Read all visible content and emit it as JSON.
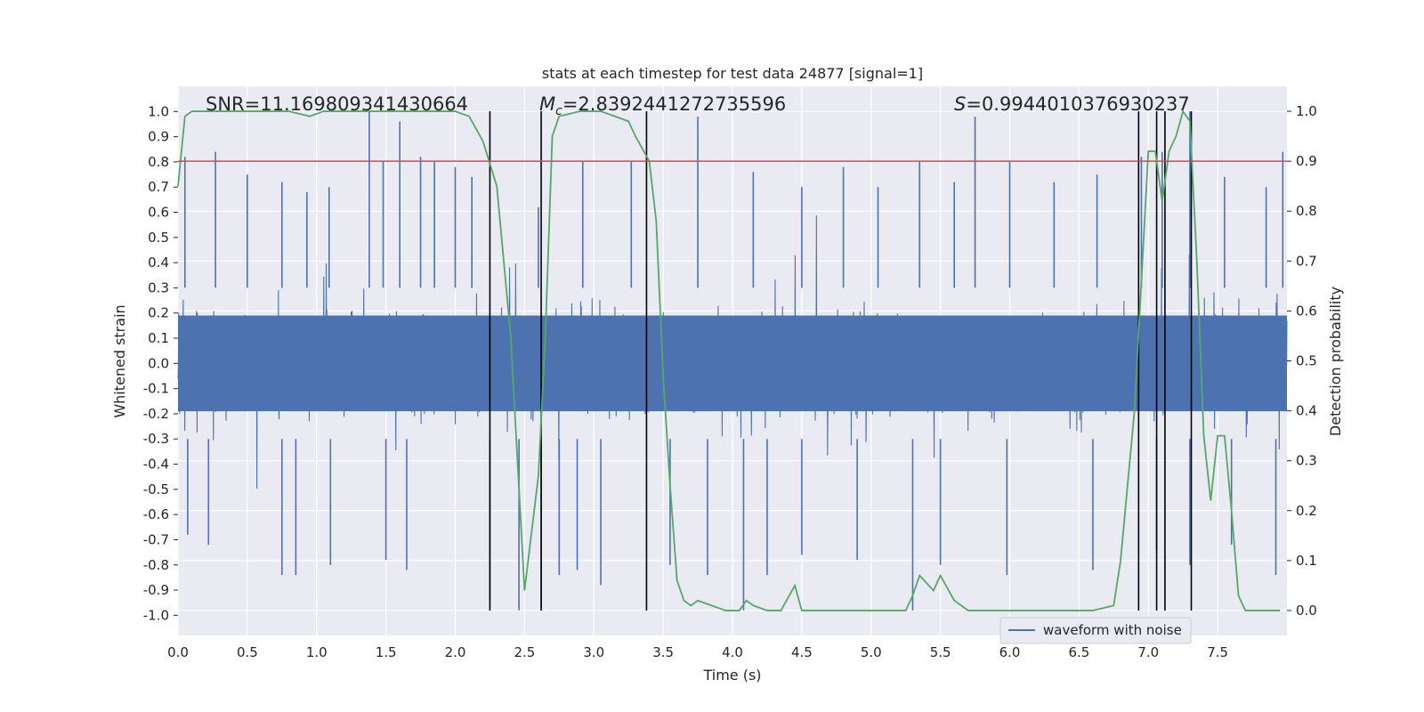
{
  "chart_data": {
    "type": "line",
    "title": "stats at each timestep for test data 24877 [signal=1]",
    "xlabel": "Time (s)",
    "ylabel": "Whitened strain",
    "y2label": "Detection probability",
    "xlim": [
      0,
      8
    ],
    "ylim": [
      -1.08,
      1.1
    ],
    "y2lim": [
      -0.05,
      1.05
    ],
    "xticks": [
      0.0,
      0.5,
      1.0,
      1.5,
      2.0,
      2.5,
      3.0,
      3.5,
      4.0,
      4.5,
      5.0,
      5.5,
      6.0,
      6.5,
      7.0,
      7.5
    ],
    "yticks": [
      1.0,
      0.9,
      0.8,
      0.7,
      0.6,
      0.5,
      0.4,
      0.3,
      0.2,
      0.1,
      0.0,
      -0.1,
      -0.2,
      -0.3,
      -0.4,
      -0.5,
      -0.6,
      -0.7,
      -0.8,
      -0.9,
      -1.0
    ],
    "y2ticks": [
      1.0,
      0.9,
      0.8,
      0.7,
      0.6,
      0.5,
      0.4,
      0.3,
      0.2,
      0.1,
      0.0
    ],
    "grid": true,
    "legend": {
      "placement": "lower-right",
      "entries": [
        "waveform with noise"
      ]
    },
    "annotations": {
      "snr_text": "SNR=11.169809341430664",
      "mc_symbol": "M",
      "mc_subscript": "c",
      "mc_value": "=2.8392441272735596",
      "s_symbol": "S",
      "s_value": "=0.9944010376930237"
    },
    "threshold": {
      "axis": "y2",
      "value": 0.9,
      "color": "#c44e52"
    },
    "vertical_markers_x": [
      2.25,
      2.62,
      3.38,
      6.93,
      7.06,
      7.12,
      7.31
    ],
    "series": [
      {
        "name": "waveform with noise",
        "axis": "y",
        "color": "#4c72b0",
        "description_note": "dense noisy strain, core amplitude about 0.2, spikes up to 1.0 and down to -0.98",
        "spikes_up": [
          [
            0.05,
            0.82
          ],
          [
            0.27,
            0.84
          ],
          [
            0.5,
            0.75
          ],
          [
            0.75,
            0.72
          ],
          [
            0.93,
            0.68
          ],
          [
            1.09,
            0.7
          ],
          [
            1.38,
            1.0
          ],
          [
            1.48,
            0.8
          ],
          [
            1.6,
            0.96
          ],
          [
            1.75,
            0.82
          ],
          [
            1.85,
            0.8
          ],
          [
            2.0,
            0.78
          ],
          [
            2.12,
            0.74
          ],
          [
            2.6,
            0.62
          ],
          [
            2.92,
            0.8
          ],
          [
            3.27,
            0.8
          ],
          [
            3.75,
            0.98
          ],
          [
            4.15,
            0.76
          ],
          [
            4.5,
            0.7
          ],
          [
            4.8,
            0.78
          ],
          [
            5.05,
            0.7
          ],
          [
            5.35,
            0.8
          ],
          [
            5.6,
            0.72
          ],
          [
            5.75,
            0.98
          ],
          [
            6.0,
            0.8
          ],
          [
            6.32,
            0.72
          ],
          [
            6.63,
            0.75
          ],
          [
            6.95,
            0.82
          ],
          [
            7.1,
            0.84
          ],
          [
            7.3,
            1.0
          ],
          [
            7.55,
            0.74
          ],
          [
            7.85,
            0.7
          ],
          [
            7.97,
            0.84
          ]
        ],
        "spikes_down": [
          [
            0.07,
            -0.68
          ],
          [
            0.22,
            -0.72
          ],
          [
            0.75,
            -0.84
          ],
          [
            0.85,
            -0.84
          ],
          [
            1.1,
            -0.8
          ],
          [
            1.5,
            -0.78
          ],
          [
            1.65,
            -0.82
          ],
          [
            2.25,
            -0.94
          ],
          [
            2.46,
            -0.98
          ],
          [
            2.62,
            -0.97
          ],
          [
            2.75,
            -0.84
          ],
          [
            2.88,
            -0.82
          ],
          [
            3.05,
            -0.88
          ],
          [
            3.55,
            -0.8
          ],
          [
            3.82,
            -0.84
          ],
          [
            4.08,
            -0.98
          ],
          [
            4.25,
            -0.84
          ],
          [
            4.5,
            -0.76
          ],
          [
            4.9,
            -0.78
          ],
          [
            5.3,
            -0.98
          ],
          [
            5.5,
            -0.8
          ],
          [
            5.98,
            -0.84
          ],
          [
            6.6,
            -0.82
          ],
          [
            7.06,
            -0.74
          ],
          [
            7.3,
            -0.8
          ],
          [
            7.6,
            -0.72
          ],
          [
            7.92,
            -0.84
          ]
        ]
      },
      {
        "name": "",
        "axis": "y2",
        "color": "#55a868",
        "x": [
          0.0,
          0.05,
          0.1,
          0.2,
          0.4,
          0.6,
          0.8,
          0.95,
          1.05,
          1.2,
          1.4,
          1.6,
          1.8,
          2.0,
          2.1,
          2.2,
          2.3,
          2.4,
          2.5,
          2.6,
          2.65,
          2.7,
          2.75,
          2.9,
          3.05,
          3.15,
          3.25,
          3.3,
          3.4,
          3.45,
          3.5,
          3.55,
          3.6,
          3.65,
          3.7,
          3.75,
          3.85,
          3.95,
          4.05,
          4.1,
          4.15,
          4.25,
          4.35,
          4.45,
          4.5,
          4.6,
          4.7,
          4.8,
          4.95,
          5.05,
          5.15,
          5.25,
          5.3,
          5.35,
          5.45,
          5.5,
          5.6,
          5.7,
          5.8,
          6.0,
          6.2,
          6.4,
          6.6,
          6.75,
          6.8,
          6.9,
          7.0,
          7.05,
          7.1,
          7.15,
          7.2,
          7.25,
          7.3,
          7.35,
          7.4,
          7.45,
          7.5,
          7.55,
          7.6,
          7.65,
          7.7,
          7.8,
          7.9,
          7.95
        ],
        "values": [
          0.85,
          0.99,
          1.0,
          1.0,
          1.0,
          1.0,
          1.0,
          0.99,
          1.0,
          1.0,
          1.0,
          1.0,
          1.0,
          1.0,
          0.99,
          0.94,
          0.85,
          0.55,
          0.04,
          0.27,
          0.55,
          0.95,
          0.99,
          1.0,
          1.0,
          0.99,
          0.98,
          0.95,
          0.9,
          0.78,
          0.47,
          0.25,
          0.06,
          0.02,
          0.01,
          0.02,
          0.01,
          0.0,
          0.0,
          0.02,
          0.01,
          0.0,
          0.0,
          0.05,
          0.0,
          0.0,
          0.0,
          0.0,
          0.0,
          0.0,
          0.0,
          0.0,
          0.03,
          0.07,
          0.04,
          0.07,
          0.02,
          0.0,
          0.0,
          0.0,
          0.0,
          0.0,
          0.0,
          0.01,
          0.1,
          0.4,
          0.92,
          0.92,
          0.82,
          0.92,
          0.95,
          1.0,
          0.98,
          0.7,
          0.35,
          0.22,
          0.35,
          0.35,
          0.2,
          0.03,
          0.0,
          0.0,
          0.0,
          0.0
        ]
      }
    ]
  }
}
